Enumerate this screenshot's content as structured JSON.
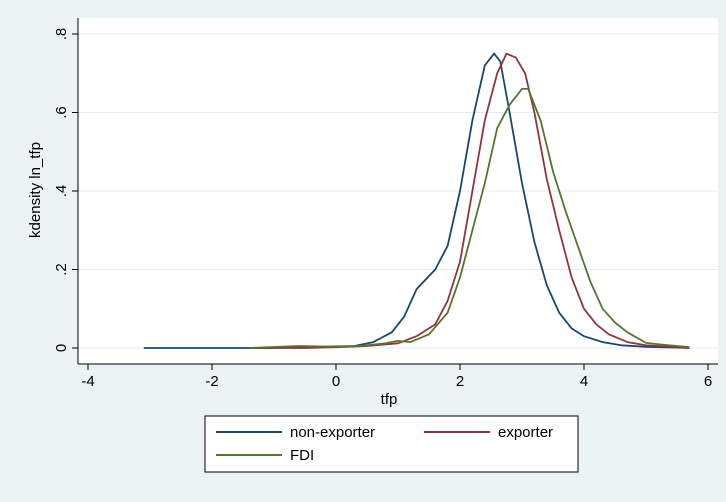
{
  "chart_data": {
    "type": "line",
    "xlabel": "tfp",
    "ylabel": "kdensity ln_tfp",
    "xlim": [
      -4,
      6
    ],
    "ylim": [
      0,
      0.8
    ],
    "x_ticks": [
      -4,
      -2,
      0,
      2,
      4,
      6
    ],
    "x_tick_labels": [
      "-4",
      "-2",
      "0",
      "2",
      "4",
      "6"
    ],
    "y_ticks": [
      0,
      0.2,
      0.4,
      0.6,
      0.8
    ],
    "y_tick_labels": [
      "0",
      ".2",
      ".4",
      ".6",
      ".8"
    ],
    "grid": "horizontal",
    "legend_position": "bottom",
    "background_color": "#eaf2f3",
    "plot_background_color": "#ffffff",
    "series": [
      {
        "name": "non-exporter",
        "color": "#1a476f",
        "points": [
          [
            -3.1,
            0.0
          ],
          [
            -2.0,
            0.0
          ],
          [
            -1.0,
            0.0
          ],
          [
            -0.5,
            0.002
          ],
          [
            0.0,
            0.004
          ],
          [
            0.3,
            0.005
          ],
          [
            0.6,
            0.015
          ],
          [
            0.9,
            0.04
          ],
          [
            1.1,
            0.08
          ],
          [
            1.3,
            0.15
          ],
          [
            1.6,
            0.2
          ],
          [
            1.8,
            0.26
          ],
          [
            2.0,
            0.4
          ],
          [
            2.2,
            0.58
          ],
          [
            2.4,
            0.72
          ],
          [
            2.55,
            0.75
          ],
          [
            2.65,
            0.73
          ],
          [
            2.8,
            0.6
          ],
          [
            3.0,
            0.42
          ],
          [
            3.2,
            0.27
          ],
          [
            3.4,
            0.16
          ],
          [
            3.6,
            0.09
          ],
          [
            3.8,
            0.05
          ],
          [
            4.0,
            0.03
          ],
          [
            4.3,
            0.015
          ],
          [
            4.6,
            0.007
          ],
          [
            5.0,
            0.003
          ],
          [
            5.5,
            0.001
          ],
          [
            5.7,
            0.0
          ]
        ]
      },
      {
        "name": "exporter",
        "color": "#90353b",
        "points": [
          [
            -1.4,
            0.0
          ],
          [
            -0.5,
            0.0
          ],
          [
            0.0,
            0.002
          ],
          [
            0.5,
            0.005
          ],
          [
            1.0,
            0.012
          ],
          [
            1.3,
            0.03
          ],
          [
            1.6,
            0.06
          ],
          [
            1.8,
            0.12
          ],
          [
            2.0,
            0.22
          ],
          [
            2.2,
            0.4
          ],
          [
            2.4,
            0.58
          ],
          [
            2.6,
            0.7
          ],
          [
            2.75,
            0.75
          ],
          [
            2.9,
            0.74
          ],
          [
            3.05,
            0.7
          ],
          [
            3.2,
            0.6
          ],
          [
            3.4,
            0.43
          ],
          [
            3.6,
            0.3
          ],
          [
            3.8,
            0.18
          ],
          [
            4.0,
            0.1
          ],
          [
            4.2,
            0.06
          ],
          [
            4.4,
            0.035
          ],
          [
            4.7,
            0.015
          ],
          [
            5.0,
            0.007
          ],
          [
            5.4,
            0.003
          ],
          [
            5.7,
            0.0
          ]
        ]
      },
      {
        "name": "FDI",
        "color": "#55752f",
        "points": [
          [
            -1.4,
            0.0
          ],
          [
            -0.6,
            0.005
          ],
          [
            0.0,
            0.003
          ],
          [
            0.4,
            0.005
          ],
          [
            0.8,
            0.012
          ],
          [
            1.0,
            0.018
          ],
          [
            1.2,
            0.015
          ],
          [
            1.5,
            0.035
          ],
          [
            1.8,
            0.09
          ],
          [
            2.0,
            0.18
          ],
          [
            2.2,
            0.3
          ],
          [
            2.4,
            0.42
          ],
          [
            2.6,
            0.56
          ],
          [
            2.8,
            0.62
          ],
          [
            3.0,
            0.66
          ],
          [
            3.1,
            0.66
          ],
          [
            3.3,
            0.58
          ],
          [
            3.5,
            0.45
          ],
          [
            3.7,
            0.35
          ],
          [
            3.9,
            0.26
          ],
          [
            4.1,
            0.17
          ],
          [
            4.3,
            0.1
          ],
          [
            4.5,
            0.065
          ],
          [
            4.7,
            0.04
          ],
          [
            5.0,
            0.013
          ],
          [
            5.3,
            0.008
          ],
          [
            5.7,
            0.002
          ]
        ]
      }
    ]
  }
}
